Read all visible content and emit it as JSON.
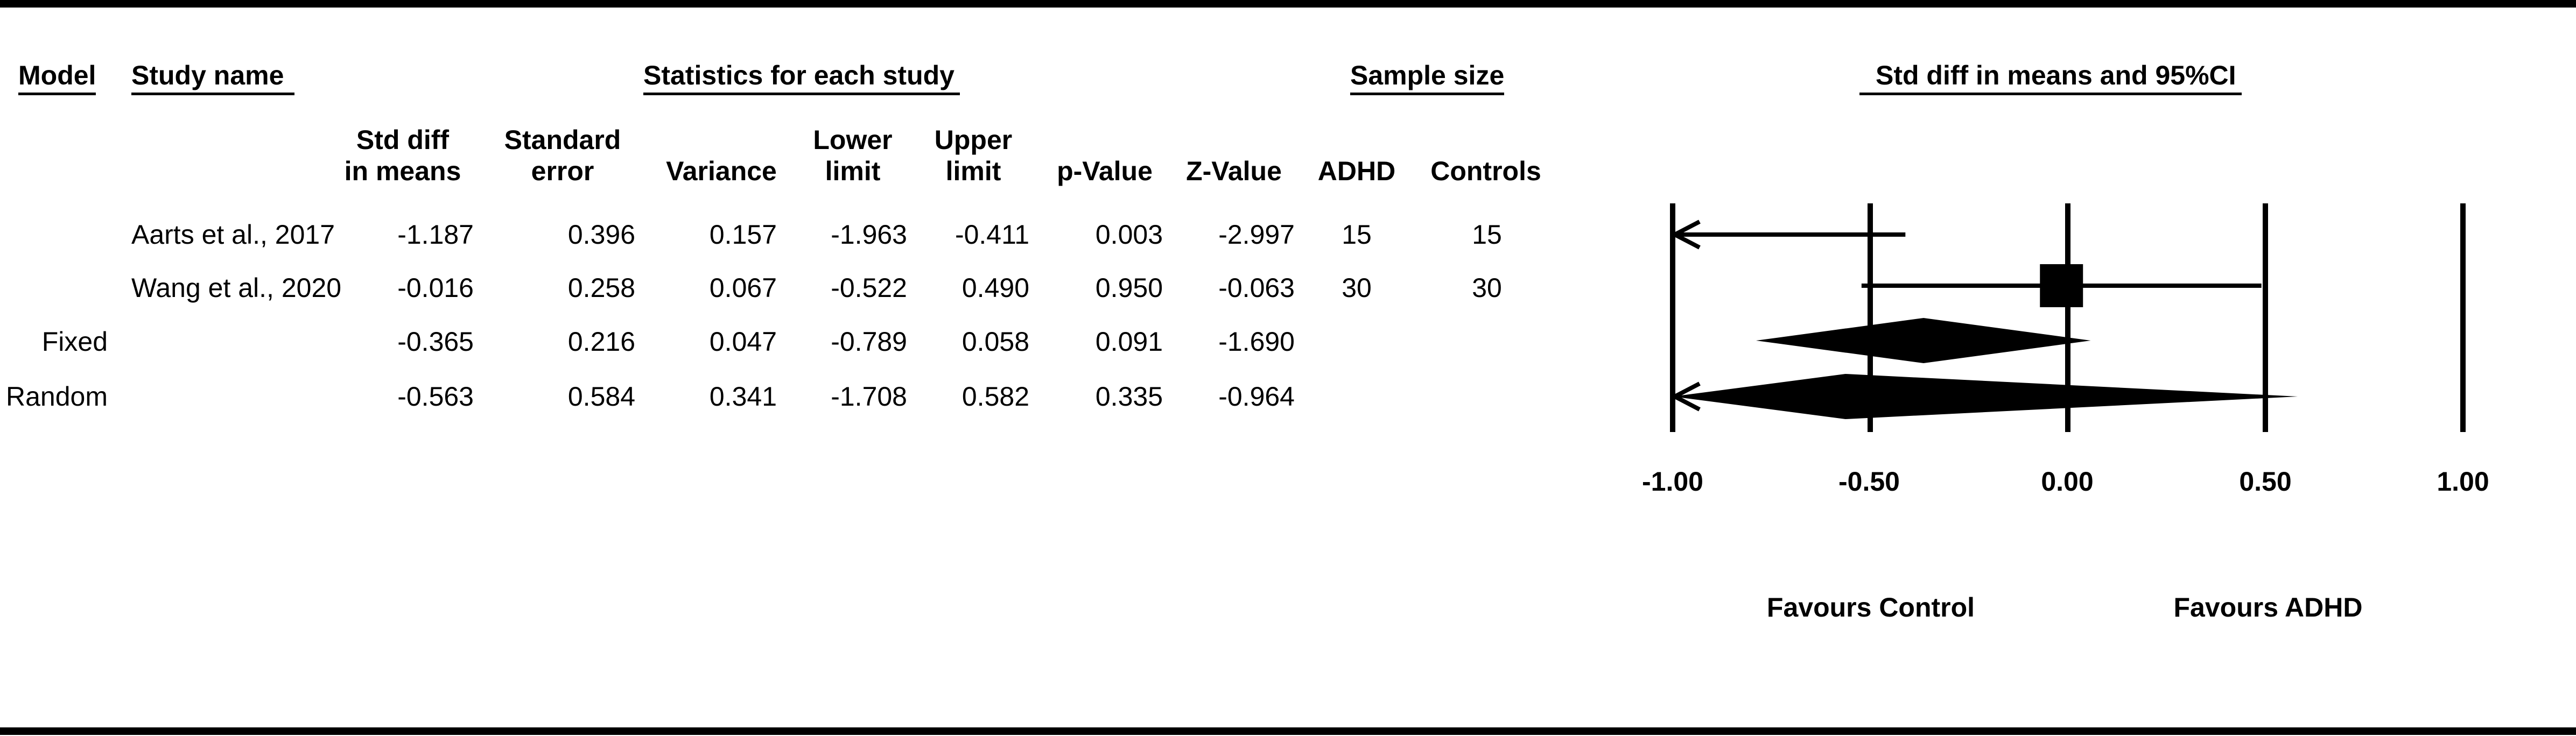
{
  "header": {
    "model": "Model",
    "study_name": "Study name",
    "stats_group": "Statistics for each study",
    "sample_group": "Sample size",
    "plot_title": "Std diff in means and 95%CI"
  },
  "columns": {
    "std_diff": [
      "Std diff",
      "in means"
    ],
    "std_err": [
      "Standard",
      "error"
    ],
    "variance": "Variance",
    "lower": [
      "Lower",
      "limit"
    ],
    "upper": [
      "Upper",
      "limit"
    ],
    "p": "p-Value",
    "z": "Z-Value",
    "adhd": "ADHD",
    "controls": "Controls"
  },
  "rows": [
    {
      "model": "",
      "study": "Aarts et al., 2017",
      "std_diff": "-1.187",
      "std_err": "0.396",
      "variance": "0.157",
      "lower": "-1.963",
      "upper": "-0.411",
      "p": "0.003",
      "z": "-2.997",
      "adhd": "15",
      "controls": "15"
    },
    {
      "model": "",
      "study": "Wang et al., 2020",
      "std_diff": "-0.016",
      "std_err": "0.258",
      "variance": "0.067",
      "lower": "-0.522",
      "upper": "0.490",
      "p": "0.950",
      "z": "-0.063",
      "adhd": "30",
      "controls": "30"
    },
    {
      "model": "Fixed",
      "study": "",
      "std_diff": "-0.365",
      "std_err": "0.216",
      "variance": "0.047",
      "lower": "-0.789",
      "upper": "0.058",
      "p": "0.091",
      "z": "-1.690",
      "adhd": "",
      "controls": ""
    },
    {
      "model": "Random",
      "study": "",
      "std_diff": "-0.563",
      "std_err": "0.584",
      "variance": "0.341",
      "lower": "-1.708",
      "upper": "0.582",
      "p": "0.335",
      "z": "-0.964",
      "adhd": "",
      "controls": ""
    }
  ],
  "axis": {
    "ticks": [
      "-1.00",
      "-0.50",
      "0.00",
      "0.50",
      "1.00"
    ]
  },
  "favours": {
    "left": "Favours Control",
    "right": "Favours ADHD"
  },
  "chart_data": {
    "type": "forest",
    "title": "Std diff in means and 95%CI",
    "xlim": [
      -1,
      1
    ],
    "xticks": [
      -1.0,
      -0.5,
      0.0,
      0.5,
      1.0
    ],
    "studies": [
      {
        "name": "Aarts et al., 2017",
        "estimate": -1.187,
        "lower": -1.963,
        "upper": -0.411,
        "marker": "square"
      },
      {
        "name": "Wang et al., 2020",
        "estimate": -0.016,
        "lower": -0.522,
        "upper": 0.49,
        "marker": "square"
      }
    ],
    "summaries": [
      {
        "name": "Fixed",
        "estimate": -0.365,
        "lower": -0.789,
        "upper": 0.058,
        "marker": "diamond"
      },
      {
        "name": "Random",
        "estimate": -0.563,
        "lower": -1.708,
        "upper": 0.582,
        "marker": "diamond"
      }
    ],
    "reference_lines": [
      -1.0,
      -0.5,
      0.0,
      0.5,
      1.0
    ],
    "favours_left": "Favours Control",
    "favours_right": "Favours ADHD",
    "grid": false
  }
}
